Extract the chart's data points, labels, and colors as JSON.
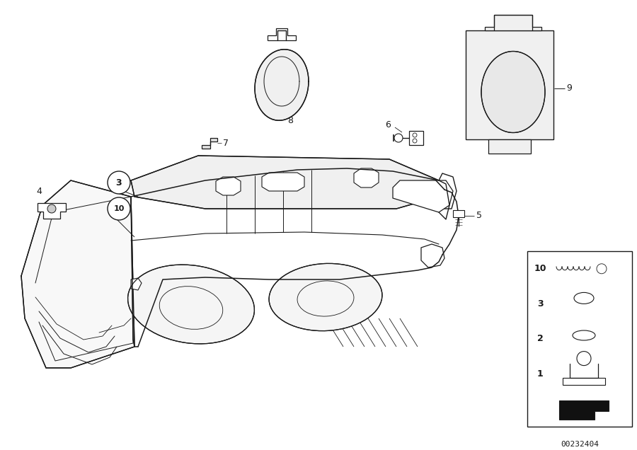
{
  "bg_color": "#ffffff",
  "line_color": "#1a1a1a",
  "part_number_code": "00232404",
  "fig_width": 9.0,
  "fig_height": 6.36,
  "dpi": 100
}
